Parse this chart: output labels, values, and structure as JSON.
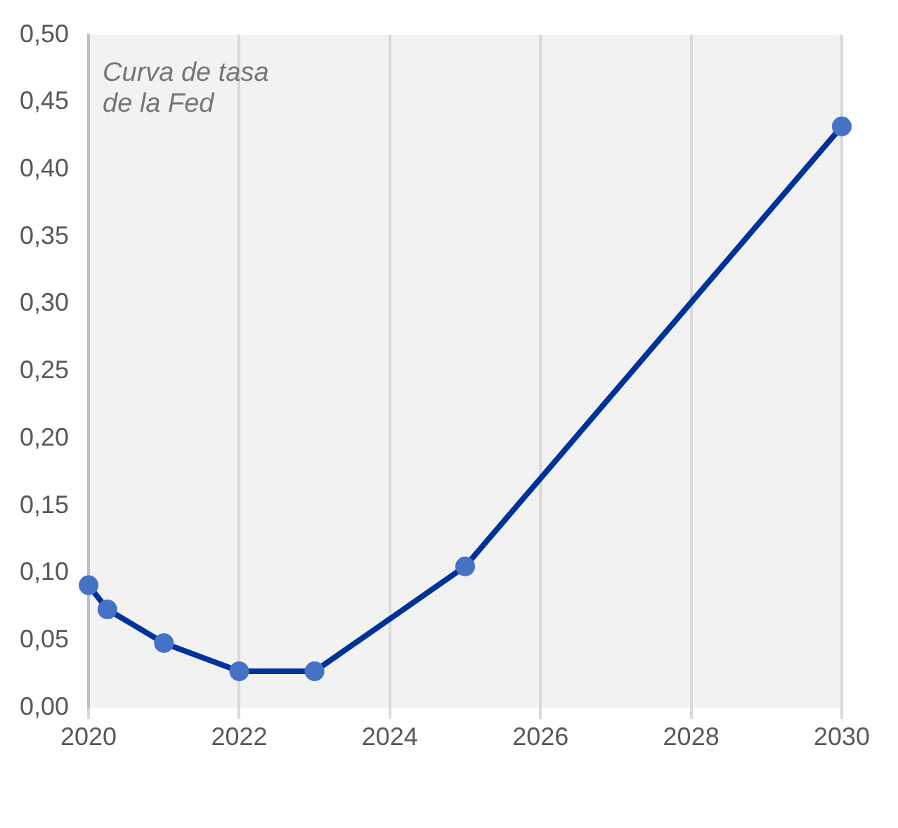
{
  "chart_data": {
    "type": "line",
    "annotations": [
      "Curva de tasa\nde la Fed"
    ],
    "x": [
      2020,
      2020.25,
      2021,
      2022,
      2023,
      2025,
      2030
    ],
    "series": [
      {
        "color": "#003399",
        "values": [
          0.091,
          0.073,
          0.048,
          0.027,
          0.027,
          0.105,
          0.432
        ]
      }
    ],
    "xlim": [
      2020,
      2030
    ],
    "xticks": [
      2020,
      2022,
      2024,
      2026,
      2028,
      2030
    ],
    "ylim": [
      0,
      0.5
    ],
    "yticks": [
      {
        "value": 0,
        "label": "0,00"
      },
      {
        "value": 0.05,
        "label": "0,05"
      },
      {
        "value": 0.1,
        "label": "0,10"
      },
      {
        "value": 0.15,
        "label": "0,15"
      },
      {
        "value": 0.2,
        "label": "0,20"
      },
      {
        "value": 0.25,
        "label": "0,25"
      },
      {
        "value": 0.3,
        "label": "0,30"
      },
      {
        "value": 0.35,
        "label": "0,35"
      },
      {
        "value": 0.4,
        "label": "0,40"
      },
      {
        "value": 0.45,
        "label": "0,45"
      },
      {
        "value": 0.5,
        "label": "0,50"
      }
    ],
    "grid": "x",
    "marker": "circle",
    "line_style": "solid",
    "legend": false
  }
}
